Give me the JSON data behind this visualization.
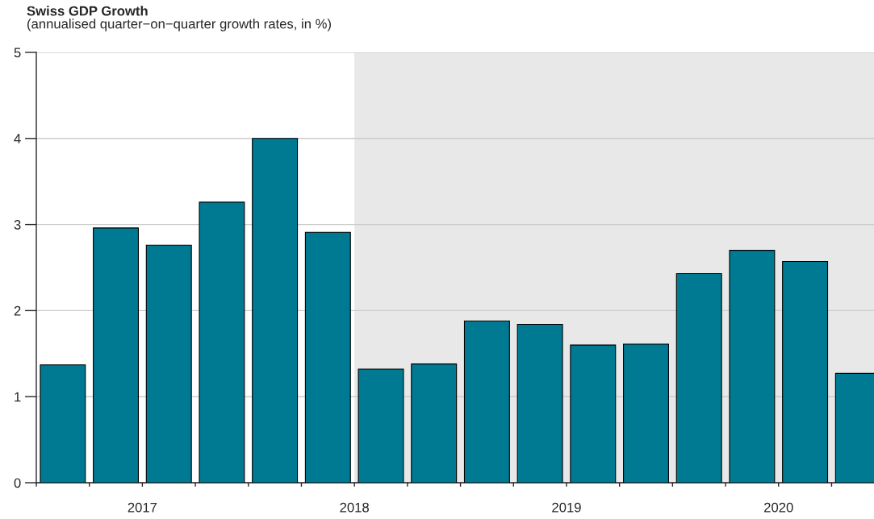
{
  "chart_data": {
    "type": "bar",
    "title": "Swiss GDP Growth",
    "subtitle": "(annualised quarter−on−quarter growth rates, in %)",
    "x": [
      2017.125,
      2017.375,
      2017.625,
      2017.875,
      2018.125,
      2018.375,
      2018.625,
      2018.875,
      2019.125,
      2019.375,
      2019.625,
      2019.875,
      2020.125,
      2020.375,
      2020.625,
      2020.875
    ],
    "values": [
      1.37,
      2.96,
      2.76,
      3.26,
      4.0,
      2.91,
      1.32,
      1.38,
      1.88,
      1.84,
      1.6,
      1.61,
      2.43,
      2.7,
      2.57,
      1.27
    ],
    "color": "#007a93",
    "xlim": [
      2017,
      2020.95
    ],
    "xticks": [
      {
        "value": 2017,
        "label": null
      },
      {
        "value": 2017.25,
        "label": null
      },
      {
        "value": 2017.5,
        "label": "2017"
      },
      {
        "value": 2017.75,
        "label": null
      },
      {
        "value": 2018,
        "label": null
      },
      {
        "value": 2018.25,
        "label": null
      },
      {
        "value": 2018.5,
        "label": "2018"
      },
      {
        "value": 2018.75,
        "label": null
      },
      {
        "value": 2019,
        "label": null
      },
      {
        "value": 2019.25,
        "label": null
      },
      {
        "value": 2019.5,
        "label": "2019"
      },
      {
        "value": 2019.75,
        "label": null
      },
      {
        "value": 2020,
        "label": null
      },
      {
        "value": 2020.25,
        "label": null
      },
      {
        "value": 2020.5,
        "label": "2020"
      },
      {
        "value": 2020.75,
        "label": null
      }
    ],
    "ylim": [
      0,
      5
    ],
    "yticks": [
      0,
      1,
      2,
      3,
      4,
      5
    ],
    "bands": [
      {
        "axis": "x",
        "from": 2018.5,
        "to": 2020.95,
        "color": "#e8e8e8"
      }
    ],
    "grid": "y",
    "legend": false
  }
}
